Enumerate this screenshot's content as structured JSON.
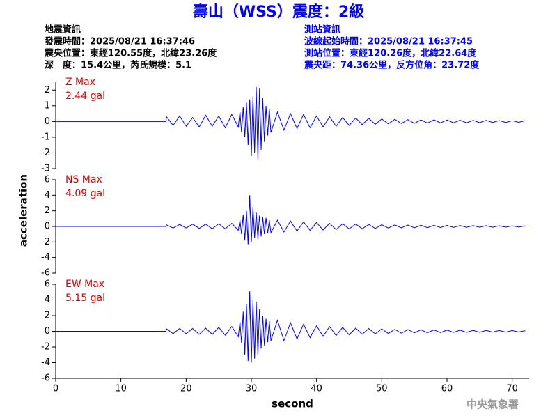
{
  "title": "壽山（WSS）震度：2級",
  "info_left": [
    "地震資訊",
    "發震時間：2025/08/21 16:37:46",
    "震央位置：東經120.55度，北緯23.26度",
    "深　度：15.4公里，芮氏規模：5.1"
  ],
  "info_right": [
    "測站資訊",
    "波線起始時間：2025/08/21 16:37:45",
    "測站位置：東經120.26度，北緯22.64度",
    "震央距：74.36公里，反方位角：23.72度"
  ],
  "ylabel": "acceleration",
  "footer": "中央氣象署",
  "chart_data": [
    {
      "type": "line",
      "title": "Z Max",
      "annotation": "2.44 gal",
      "color": "#0000ff",
      "xlim": [
        0,
        72.6
      ],
      "ylim": [
        -3,
        2.5
      ],
      "yticks": [
        -3,
        -2,
        -1,
        0,
        1,
        2
      ],
      "x": [
        0,
        16.9,
        17,
        18,
        19,
        20,
        21,
        22,
        23,
        24,
        25,
        26,
        27,
        28,
        28.25,
        28.5,
        28.75,
        29,
        29.25,
        29.5,
        29.75,
        30,
        30.25,
        30.5,
        30.75,
        31,
        31.25,
        31.5,
        31.75,
        32,
        32.25,
        32.5,
        32.75,
        33,
        34,
        35,
        36,
        37,
        38,
        39,
        40,
        41,
        42,
        43,
        44,
        45,
        46,
        47,
        48,
        49,
        50,
        51,
        52,
        53,
        54,
        55,
        56,
        57,
        58,
        59,
        60,
        61,
        62,
        63,
        64,
        65,
        66,
        67,
        68,
        69,
        70,
        71,
        72
      ],
      "values": [
        0,
        0,
        0.3,
        -0.25,
        0.35,
        -0.3,
        0.25,
        -0.35,
        0.4,
        -0.3,
        0.35,
        -0.4,
        0.45,
        -0.35,
        0.6,
        -0.7,
        0.9,
        -1.0,
        1.2,
        -1.5,
        1.4,
        -2.2,
        1.6,
        -2.0,
        2.2,
        -2.4,
        2.1,
        -1.8,
        1.5,
        -1.3,
        1.0,
        -0.9,
        0.8,
        -0.7,
        0.6,
        -0.55,
        0.5,
        -0.45,
        0.45,
        -0.4,
        0.35,
        -0.35,
        0.3,
        -0.3,
        0.25,
        -0.25,
        0.22,
        -0.2,
        0.2,
        -0.18,
        0.16,
        -0.15,
        0.14,
        -0.13,
        0.12,
        -0.12,
        0.1,
        -0.1,
        0.1,
        -0.09,
        0.09,
        -0.08,
        0.08,
        -0.08,
        0.07,
        -0.07,
        0.07,
        -0.06,
        0.06,
        -0.06,
        0.05,
        -0.05,
        0.05
      ]
    },
    {
      "type": "line",
      "title": "NS Max",
      "annotation": "4.09 gal",
      "color": "#0000ff",
      "xlim": [
        0,
        72.6
      ],
      "ylim": [
        -6,
        6
      ],
      "yticks": [
        -6,
        -4,
        -2,
        0,
        2,
        4,
        6
      ],
      "x": [
        0,
        16.9,
        17,
        18,
        19,
        20,
        21,
        22,
        23,
        24,
        25,
        26,
        27,
        28,
        28.25,
        28.5,
        28.75,
        29,
        29.25,
        29.5,
        29.75,
        30,
        30.25,
        30.5,
        30.75,
        31,
        31.25,
        31.5,
        31.75,
        32,
        32.25,
        32.5,
        32.75,
        33,
        34,
        35,
        36,
        37,
        38,
        39,
        40,
        41,
        42,
        43,
        44,
        45,
        46,
        47,
        48,
        49,
        50,
        51,
        52,
        53,
        54,
        55,
        56,
        57,
        58,
        59,
        60,
        61,
        62,
        63,
        64,
        65,
        66,
        67,
        68,
        69,
        70,
        71,
        72
      ],
      "values": [
        0,
        0,
        0.2,
        -0.2,
        0.25,
        -0.2,
        0.3,
        -0.25,
        0.3,
        -0.3,
        0.35,
        -0.3,
        0.4,
        -0.5,
        0.8,
        -1.0,
        1.5,
        -1.8,
        2.0,
        -2.3,
        4.0,
        -2.0,
        2.5,
        -1.5,
        1.8,
        -1.6,
        1.4,
        -1.3,
        1.2,
        -1.0,
        1.1,
        -0.9,
        0.8,
        -0.8,
        0.8,
        -0.7,
        0.7,
        -0.6,
        0.6,
        -0.5,
        0.5,
        -0.45,
        0.4,
        -0.4,
        0.35,
        -0.3,
        0.3,
        -0.28,
        0.25,
        -0.25,
        0.22,
        -0.2,
        0.2,
        -0.18,
        0.18,
        -0.16,
        0.15,
        -0.15,
        0.14,
        -0.13,
        0.13,
        -0.12,
        0.12,
        -0.11,
        0.11,
        -0.1,
        0.1,
        -0.1,
        0.09,
        -0.09,
        0.08,
        -0.08,
        0.08
      ]
    },
    {
      "type": "line",
      "title": "EW Max",
      "annotation": "5.15 gal",
      "color": "#0000ff",
      "xlim": [
        0,
        72.6
      ],
      "ylim": [
        -6,
        6
      ],
      "yticks": [
        -6,
        -4,
        -2,
        0,
        2,
        4,
        6
      ],
      "xticks": [
        0,
        10,
        20,
        30,
        40,
        50,
        60,
        70
      ],
      "xlabel": "second",
      "x": [
        0,
        16.9,
        17,
        18,
        19,
        20,
        21,
        22,
        23,
        24,
        25,
        26,
        27,
        28,
        28.25,
        28.5,
        28.75,
        29,
        29.25,
        29.5,
        29.75,
        30,
        30.25,
        30.5,
        30.75,
        31,
        31.25,
        31.5,
        31.75,
        32,
        32.25,
        32.5,
        32.75,
        33,
        34,
        35,
        36,
        37,
        38,
        39,
        40,
        41,
        42,
        43,
        44,
        45,
        46,
        47,
        48,
        49,
        50,
        51,
        52,
        53,
        54,
        55,
        56,
        57,
        58,
        59,
        60,
        61,
        62,
        63,
        64,
        65,
        66,
        67,
        68,
        69,
        70,
        71,
        72
      ],
      "values": [
        0,
        0,
        0.3,
        -0.3,
        0.35,
        -0.3,
        0.35,
        -0.4,
        0.4,
        -0.4,
        0.5,
        -0.5,
        0.6,
        -0.7,
        1.2,
        -1.5,
        2.5,
        -3.0,
        3.5,
        -3.8,
        5.1,
        -4.0,
        4.0,
        -3.5,
        3.8,
        -3.0,
        2.8,
        -2.2,
        2.0,
        -1.8,
        1.6,
        -1.4,
        1.3,
        -1.2,
        1.4,
        -1.2,
        1.1,
        -1.0,
        0.9,
        -0.8,
        0.7,
        -0.65,
        0.6,
        -0.55,
        0.5,
        -0.45,
        0.4,
        -0.38,
        0.35,
        -0.32,
        0.3,
        -0.28,
        0.25,
        -0.24,
        0.22,
        -0.2,
        0.2,
        -0.18,
        0.17,
        -0.16,
        0.15,
        -0.14,
        0.14,
        -0.13,
        0.12,
        -0.12,
        0.11,
        -0.1,
        0.1,
        -0.1,
        0.09,
        -0.09,
        0.08
      ]
    }
  ]
}
